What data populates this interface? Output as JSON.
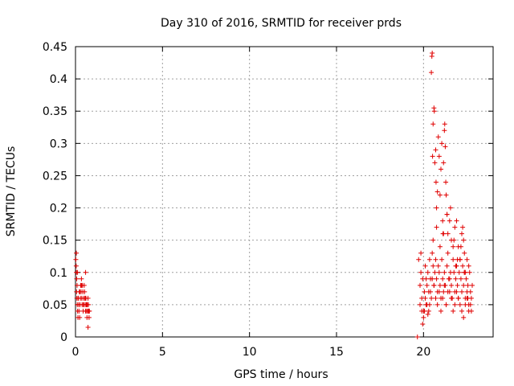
{
  "chart_data": {
    "type": "scatter",
    "title": "Day 310 of 2016, SRMTID for receiver prds",
    "xlabel": "GPS time / hours",
    "ylabel": "SRMTID / TECUs",
    "xlim": [
      0,
      24
    ],
    "ylim": [
      0,
      0.45
    ],
    "xticks": [
      0,
      5,
      10,
      15,
      20
    ],
    "yticks": [
      0,
      0.05,
      0.1,
      0.15,
      0.2,
      0.25,
      0.3,
      0.35,
      0.4,
      0.45
    ],
    "xtick_labels": [
      "0",
      "5",
      "10",
      "15",
      "20"
    ],
    "ytick_labels": [
      "0",
      "0.05",
      "0.1",
      "0.15",
      "0.2",
      "0.25",
      "0.3",
      "0.35",
      "0.4",
      "0.45"
    ],
    "grid": true,
    "marker": "+",
    "color": "#e00000",
    "series": [
      {
        "name": "SRMTID",
        "x": [
          0.02,
          0.04,
          0.05,
          0.06,
          0.08,
          0.1,
          0.12,
          0.14,
          0.16,
          0.18,
          0.2,
          0.22,
          0.24,
          0.26,
          0.28,
          0.3,
          0.32,
          0.34,
          0.36,
          0.38,
          0.4,
          0.42,
          0.44,
          0.46,
          0.48,
          0.5,
          0.52,
          0.54,
          0.56,
          0.58,
          0.6,
          0.62,
          0.64,
          0.66,
          0.68,
          0.7,
          0.72,
          0.74,
          0.76,
          0.78,
          0.8,
          0.05,
          0.07,
          0.09,
          0.11,
          0.15,
          0.25,
          0.35,
          0.45,
          0.55,
          0.65,
          0.75,
          0.58,
          0.72,
          19.65,
          19.72,
          19.8,
          19.85,
          19.9,
          19.95,
          20.0,
          20.05,
          20.1,
          20.15,
          20.2,
          20.25,
          20.3,
          20.35,
          20.4,
          20.45,
          20.5,
          20.55,
          20.6,
          20.65,
          20.7,
          20.75,
          20.8,
          20.85,
          20.9,
          20.95,
          21.0,
          21.05,
          21.1,
          21.15,
          21.2,
          21.25,
          21.3,
          21.35,
          21.4,
          21.45,
          21.5,
          21.55,
          21.6,
          21.65,
          21.7,
          21.75,
          21.8,
          21.85,
          21.9,
          21.95,
          22.0,
          22.05,
          22.1,
          22.15,
          22.2,
          22.25,
          22.3,
          22.35,
          22.4,
          22.45,
          22.5,
          22.55,
          22.6,
          22.65,
          22.7,
          22.75,
          22.8,
          19.8,
          19.9,
          20.0,
          20.1,
          20.2,
          20.3,
          20.4,
          20.5,
          20.6,
          20.7,
          20.8,
          20.9,
          21.0,
          21.1,
          21.2,
          21.3,
          21.4,
          21.5,
          21.6,
          21.7,
          21.8,
          21.9,
          22.0,
          22.1,
          22.2,
          22.3,
          22.4,
          22.5,
          22.6,
          22.7,
          20.45,
          20.48,
          20.5,
          20.52,
          20.55,
          20.6,
          20.62,
          20.65,
          20.7,
          20.72,
          20.75,
          20.8,
          20.85,
          20.9,
          20.95,
          21.0,
          21.05,
          21.1,
          21.12,
          21.15,
          21.2,
          21.22,
          21.25,
          21.28,
          21.3,
          21.35,
          21.4,
          21.5,
          21.6,
          21.7,
          21.8,
          21.85,
          21.9,
          22.0,
          22.1,
          22.2,
          22.25,
          22.3,
          22.35,
          22.4,
          22.5,
          22.6,
          19.85,
          19.95,
          20.05,
          20.15,
          20.25,
          20.35,
          20.55,
          20.75,
          20.95,
          21.15,
          21.35,
          21.55,
          21.75,
          21.95,
          22.15,
          22.35,
          22.55,
          22.75
        ],
        "y": [
          0.12,
          0.11,
          0.13,
          0.07,
          0.06,
          0.05,
          0.04,
          0.03,
          0.06,
          0.05,
          0.04,
          0.07,
          0.03,
          0.05,
          0.06,
          0.08,
          0.07,
          0.09,
          0.06,
          0.05,
          0.08,
          0.07,
          0.04,
          0.06,
          0.05,
          0.08,
          0.07,
          0.06,
          0.05,
          0.04,
          0.06,
          0.05,
          0.04,
          0.03,
          0.05,
          0.04,
          0.06,
          0.05,
          0.04,
          0.03,
          0.04,
          0.1,
          0.09,
          0.08,
          0.1,
          0.06,
          0.07,
          0.08,
          0.05,
          0.06,
          0.05,
          0.04,
          0.1,
          0.015,
          0.0,
          0.12,
          0.08,
          0.1,
          0.06,
          0.09,
          0.04,
          0.07,
          0.11,
          0.05,
          0.08,
          0.1,
          0.07,
          0.12,
          0.09,
          0.06,
          0.13,
          0.11,
          0.08,
          0.1,
          0.12,
          0.09,
          0.07,
          0.11,
          0.1,
          0.08,
          0.06,
          0.12,
          0.09,
          0.07,
          0.1,
          0.08,
          0.05,
          0.11,
          0.13,
          0.09,
          0.07,
          0.1,
          0.08,
          0.06,
          0.12,
          0.1,
          0.07,
          0.09,
          0.11,
          0.08,
          0.06,
          0.1,
          0.12,
          0.09,
          0.07,
          0.11,
          0.08,
          0.1,
          0.06,
          0.09,
          0.07,
          0.08,
          0.05,
          0.1,
          0.07,
          0.06,
          0.08,
          0.05,
          0.04,
          0.03,
          0.06,
          0.05,
          0.04,
          0.07,
          0.09,
          0.08,
          0.06,
          0.05,
          0.07,
          0.04,
          0.06,
          0.08,
          0.05,
          0.07,
          0.09,
          0.06,
          0.04,
          0.05,
          0.07,
          0.06,
          0.05,
          0.04,
          0.03,
          0.05,
          0.06,
          0.04,
          0.05,
          0.41,
          0.435,
          0.44,
          0.28,
          0.33,
          0.355,
          0.35,
          0.27,
          0.29,
          0.24,
          0.2,
          0.225,
          0.31,
          0.28,
          0.22,
          0.26,
          0.3,
          0.18,
          0.16,
          0.27,
          0.32,
          0.33,
          0.295,
          0.24,
          0.22,
          0.19,
          0.16,
          0.18,
          0.15,
          0.14,
          0.17,
          0.11,
          0.18,
          0.14,
          0.12,
          0.16,
          0.17,
          0.15,
          0.13,
          0.1,
          0.12,
          0.11,
          0.13,
          0.02,
          0.04,
          0.09,
          0.035,
          0.05,
          0.15,
          0.17,
          0.14,
          0.16,
          0.19,
          0.2,
          0.15,
          0.12,
          0.14,
          0.1,
          0.06,
          0.04
        ]
      }
    ]
  }
}
